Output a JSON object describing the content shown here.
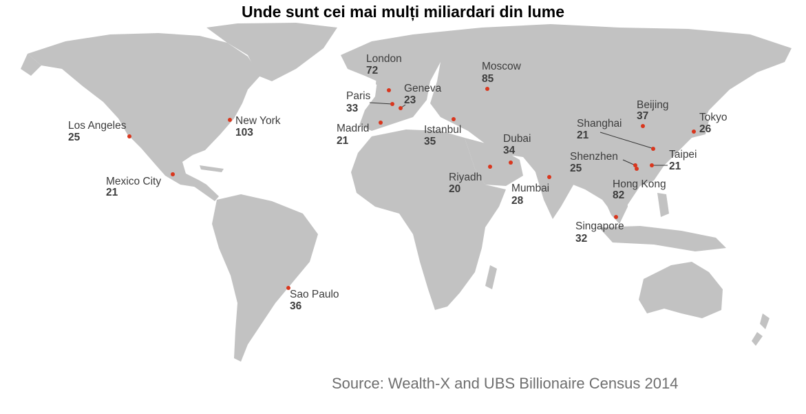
{
  "title": "Unde sunt cei mai mulți miliardari din lume",
  "source": "Source: Wealth-X and UBS Billionaire Census 2014",
  "colors": {
    "land": "#c2c2c2",
    "dot": "#d9361d",
    "text": "#3c3c3c",
    "source_text": "#6e6e6e"
  },
  "cities": [
    {
      "name": "New York",
      "count": "103"
    },
    {
      "name": "Moscow",
      "count": "85"
    },
    {
      "name": "Hong Kong",
      "count": "82"
    },
    {
      "name": "London",
      "count": "72"
    },
    {
      "name": "Beijing",
      "count": "37"
    },
    {
      "name": "Sao Paulo",
      "count": "36"
    },
    {
      "name": "Istanbul",
      "count": "35"
    },
    {
      "name": "Dubai",
      "count": "34"
    },
    {
      "name": "Paris",
      "count": "33"
    },
    {
      "name": "Singapore",
      "count": "32"
    },
    {
      "name": "Mumbai",
      "count": "28"
    },
    {
      "name": "Tokyo",
      "count": "26"
    },
    {
      "name": "Los Angeles",
      "count": "25"
    },
    {
      "name": "Shenzhen",
      "count": "25"
    },
    {
      "name": "Geneva",
      "count": "23"
    },
    {
      "name": "Mexico City",
      "count": "21"
    },
    {
      "name": "Madrid",
      "count": "21"
    },
    {
      "name": "Shanghai",
      "count": "21"
    },
    {
      "name": "Taipei",
      "count": "21"
    },
    {
      "name": "Riyadh",
      "count": "20"
    }
  ]
}
